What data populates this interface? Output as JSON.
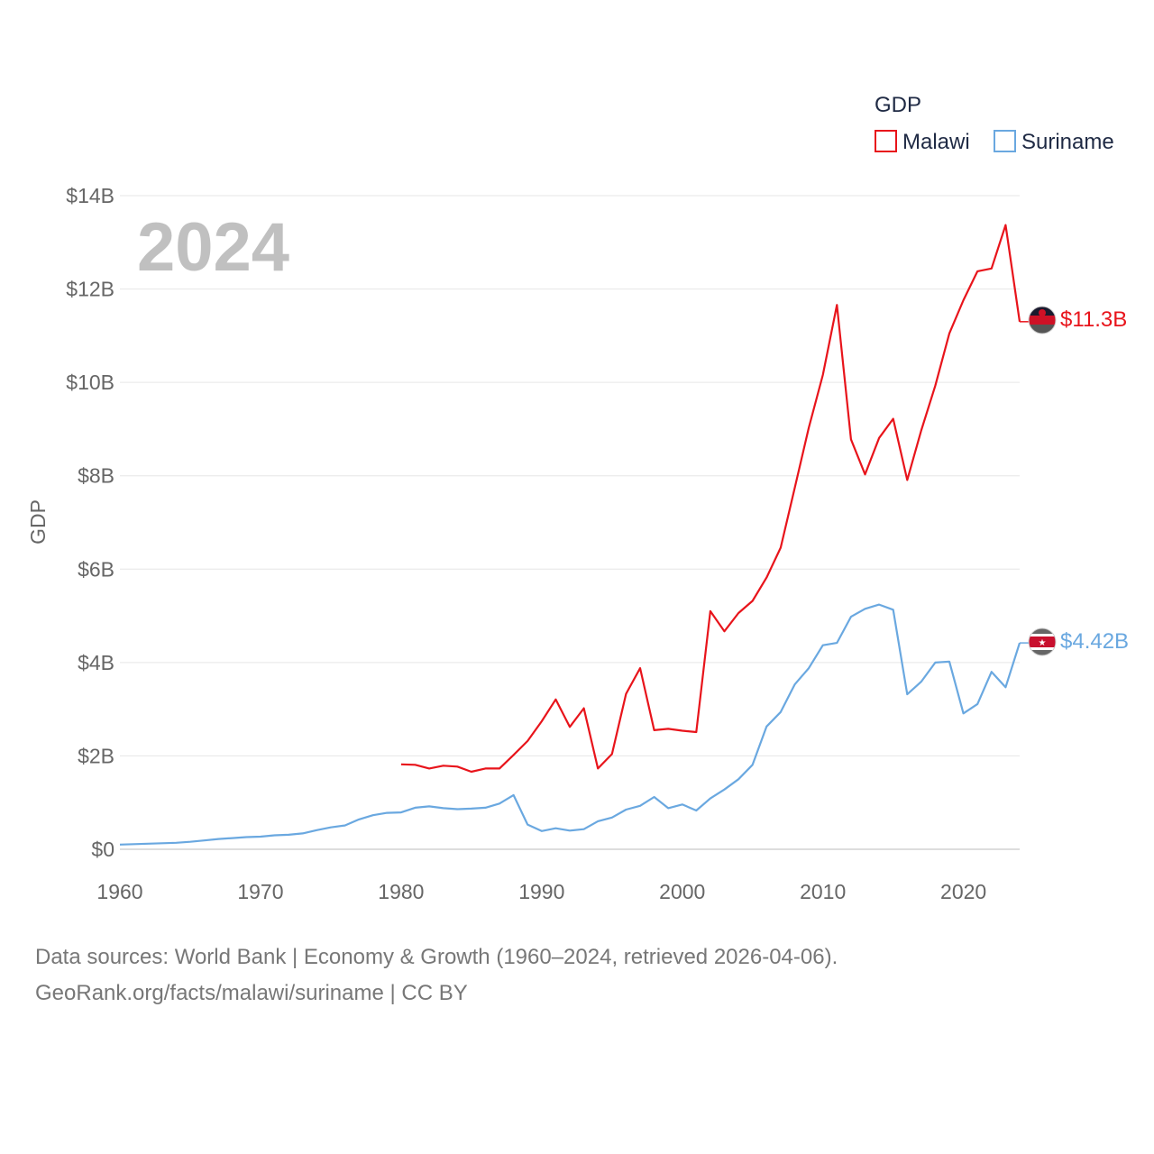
{
  "chart_data": {
    "type": "line",
    "ylabel": "GDP",
    "xlabel": "",
    "year_label": "2024",
    "legend_title": "GDP",
    "xlim": [
      1960,
      2024
    ],
    "ylim": [
      0,
      14
    ],
    "x_ticks": [
      {
        "value": 1960,
        "label": "1960"
      },
      {
        "value": 1970,
        "label": "1970"
      },
      {
        "value": 1980,
        "label": "1980"
      },
      {
        "value": 1990,
        "label": "1990"
      },
      {
        "value": 2000,
        "label": "2000"
      },
      {
        "value": 2010,
        "label": "2010"
      },
      {
        "value": 2020,
        "label": "2020"
      }
    ],
    "y_ticks": [
      {
        "value": 0,
        "label": "$0"
      },
      {
        "value": 2,
        "label": "$2B"
      },
      {
        "value": 4,
        "label": "$4B"
      },
      {
        "value": 6,
        "label": "$6B"
      },
      {
        "value": 8,
        "label": "$8B"
      },
      {
        "value": 10,
        "label": "$10B"
      },
      {
        "value": 12,
        "label": "$12B"
      },
      {
        "value": 14,
        "label": "$14B"
      }
    ],
    "series": [
      {
        "name": "Malawi",
        "color": "#e8141b",
        "end_label": "$11.3B",
        "start_year": 1980,
        "values": [
          1.82,
          1.81,
          1.73,
          1.79,
          1.77,
          1.66,
          1.73,
          1.73,
          2.02,
          2.32,
          2.74,
          3.21,
          2.62,
          3.02,
          1.73,
          2.04,
          3.33,
          3.88,
          2.55,
          2.58,
          2.54,
          2.51,
          5.1,
          4.67,
          5.06,
          5.32,
          5.82,
          6.46,
          7.74,
          9.03,
          10.16,
          11.66,
          8.78,
          8.03,
          8.81,
          9.22,
          7.91,
          8.97,
          9.93,
          11.05,
          11.76,
          12.38,
          12.44,
          13.37,
          11.3
        ]
      },
      {
        "name": "Suriname",
        "color": "#6aa8e0",
        "end_label": "$4.42B",
        "start_year": 1960,
        "values": [
          0.1,
          0.11,
          0.12,
          0.13,
          0.14,
          0.16,
          0.19,
          0.22,
          0.24,
          0.26,
          0.27,
          0.3,
          0.31,
          0.34,
          0.41,
          0.47,
          0.51,
          0.64,
          0.73,
          0.78,
          0.79,
          0.89,
          0.92,
          0.88,
          0.86,
          0.87,
          0.89,
          0.98,
          1.16,
          0.53,
          0.39,
          0.45,
          0.4,
          0.43,
          0.6,
          0.68,
          0.85,
          0.93,
          1.12,
          0.88,
          0.96,
          0.83,
          1.09,
          1.28,
          1.5,
          1.81,
          2.63,
          2.94,
          3.53,
          3.88,
          4.37,
          4.42,
          4.98,
          5.15,
          5.24,
          5.13,
          3.32,
          3.59,
          4.0,
          4.02,
          2.91,
          3.11,
          3.8,
          3.47,
          4.42
        ]
      }
    ],
    "legend_position": "top-right"
  },
  "footer": {
    "line1": "Data sources: World Bank | Economy & Growth (1960–2024, retrieved 2026-04-06).",
    "line2": "GeoRank.org/facts/malawi/suriname | CC BY"
  }
}
